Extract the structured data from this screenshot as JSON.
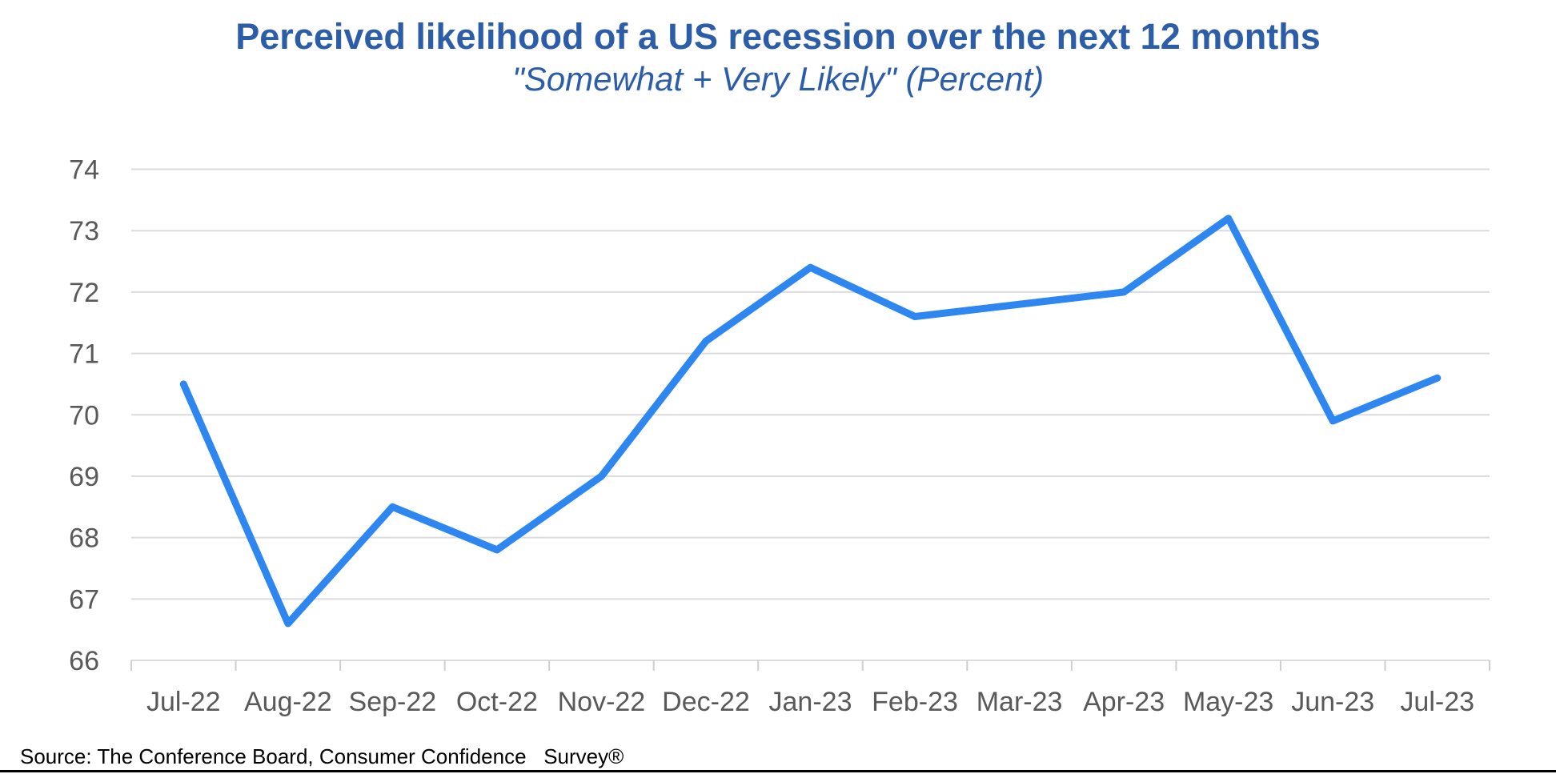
{
  "chart": {
    "title": "Perceived likelihood of a US recession over the next 12 months",
    "subtitle": "\"Somewhat + Very Likely\" (Percent)"
  },
  "footer": {
    "source": "Source: The Conference Board, Consumer Confidence   Survey®"
  },
  "colors": {
    "title_text": "#2c5da8",
    "line": "#2e86f0",
    "axis_text": "#595959",
    "gridline": "#dcdcdc",
    "tick": "#d0cece",
    "divider": "#000000",
    "background": "#ffffff"
  },
  "chart_data": {
    "type": "line",
    "title": "Perceived likelihood of a US recession over the next 12 months",
    "subtitle": "\"Somewhat + Very Likely\" (Percent)",
    "categories": [
      "Jul-22",
      "Aug-22",
      "Sep-22",
      "Oct-22",
      "Nov-22",
      "Dec-22",
      "Jan-23",
      "Feb-23",
      "Mar-23",
      "Apr-23",
      "May-23",
      "Jun-23",
      "Jul-23"
    ],
    "values": [
      70.5,
      66.6,
      68.5,
      67.8,
      69.0,
      71.2,
      72.4,
      71.6,
      71.8,
      72.0,
      73.2,
      69.9,
      70.6
    ],
    "xlabel": "",
    "ylabel": "",
    "ylim": [
      66,
      74
    ],
    "ytick_step": 1,
    "yticks": [
      66,
      67,
      68,
      69,
      70,
      71,
      72,
      73,
      74
    ],
    "grid": true,
    "legend": false,
    "line_width": 9
  }
}
